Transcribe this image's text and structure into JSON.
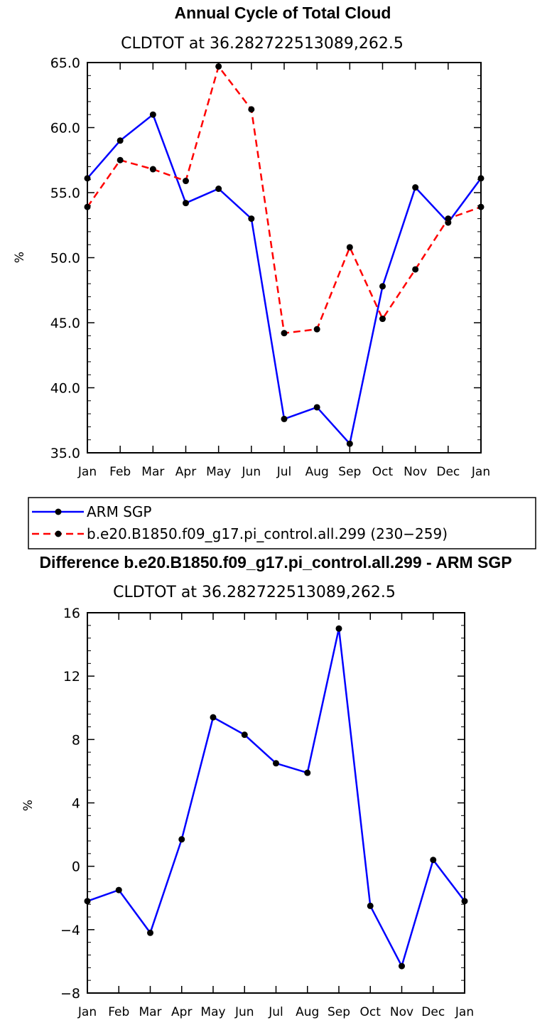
{
  "chart_data": [
    {
      "type": "line",
      "title": "Annual Cycle of Total Cloud",
      "subtitle": "CLDTOT at 36.282722513089,262.5",
      "xlabel": "",
      "ylabel": "%",
      "categories": [
        "Jan",
        "Feb",
        "Mar",
        "Apr",
        "May",
        "Jun",
        "Jul",
        "Aug",
        "Sep",
        "Oct",
        "Nov",
        "Dec",
        "Jan"
      ],
      "ylim": [
        35,
        65
      ],
      "yticks": [
        "35.0",
        "40.0",
        "45.0",
        "50.0",
        "55.0",
        "60.0",
        "65.0"
      ],
      "series": [
        {
          "name": "ARM SGP",
          "color": "#0000ff",
          "dash": "solid",
          "values": [
            56.1,
            59.0,
            61.0,
            54.2,
            55.3,
            53.0,
            37.6,
            38.5,
            35.7,
            47.8,
            55.4,
            52.7,
            56.1
          ]
        },
        {
          "name": "b.e20.B1850.f09_g17.pi_control.all.299 (230−259)",
          "color": "#ff0000",
          "dash": "dashed",
          "values": [
            53.9,
            57.5,
            56.8,
            55.9,
            64.7,
            61.4,
            44.2,
            44.5,
            50.8,
            45.3,
            49.1,
            53.0,
            53.9
          ]
        }
      ]
    },
    {
      "type": "line",
      "title": "Difference b.e20.B1850.f09_g17.pi_control.all.299 - ARM SGP",
      "subtitle": "CLDTOT at 36.282722513089,262.5",
      "xlabel": "",
      "ylabel": "%",
      "categories": [
        "Jan",
        "Feb",
        "Mar",
        "Apr",
        "May",
        "Jun",
        "Jul",
        "Aug",
        "Sep",
        "Oct",
        "Nov",
        "Dec",
        "Jan"
      ],
      "ylim": [
        -8,
        16
      ],
      "yticks": [
        "−8",
        "−4",
        "0",
        "4",
        "8",
        "12",
        "16"
      ],
      "series": [
        {
          "name": "difference",
          "color": "#0000ff",
          "dash": "solid",
          "values": [
            -2.2,
            -1.5,
            -4.2,
            1.7,
            9.4,
            8.3,
            6.5,
            5.9,
            15.0,
            -2.5,
            -6.3,
            0.4,
            -2.2
          ]
        }
      ]
    }
  ]
}
